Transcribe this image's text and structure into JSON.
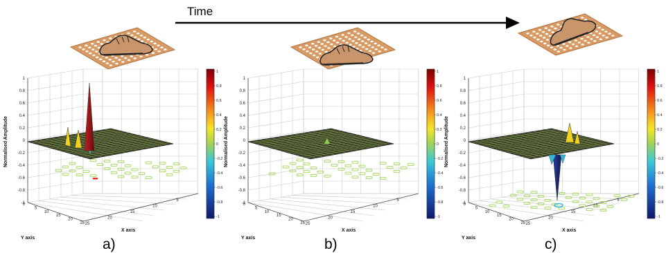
{
  "time_label": "Time",
  "axis_labels": {
    "y_axis": "Y axis",
    "x_axis": "X axis",
    "z_axis": "Normalised Amplitude"
  },
  "z_ticks": [
    "1",
    "0.8",
    "0.6",
    "0.4",
    "0.2",
    "0",
    "-0.2",
    "-0.4",
    "-0.6",
    "-0.8",
    "-1"
  ],
  "y_ticks": [
    "0",
    "5",
    "10",
    "15",
    "20",
    "25"
  ],
  "x_ticks": [
    "25",
    "20",
    "15",
    "10",
    "5"
  ],
  "colorbar_ticks": [
    "1",
    "0.8",
    "0.6",
    "0.4",
    "0.2",
    "0",
    "-0.2",
    "-0.4",
    "-0.6",
    "-0.8",
    "-1"
  ],
  "panels": [
    {
      "letter": "a)",
      "shoe_pose": "flat",
      "peaks": "single-strong-positive"
    },
    {
      "letter": "b)",
      "shoe_pose": "flat",
      "peaks": "small"
    },
    {
      "letter": "c)",
      "shoe_pose": "heel-raised",
      "peaks": "positive-and-negative"
    }
  ],
  "colors": {
    "mat": "#d89a63",
    "mat_dots": "#ffffff",
    "shoe": "#c9956a",
    "surface": "#3d3f2a",
    "surface_grid": "#9fd35a",
    "contour": "#a8d86a",
    "peak_red": "#a01818",
    "peak_yellow": "#f2d21e",
    "peak_cyan": "#35b6d8",
    "peak_blue": "#1c2a7a"
  }
}
